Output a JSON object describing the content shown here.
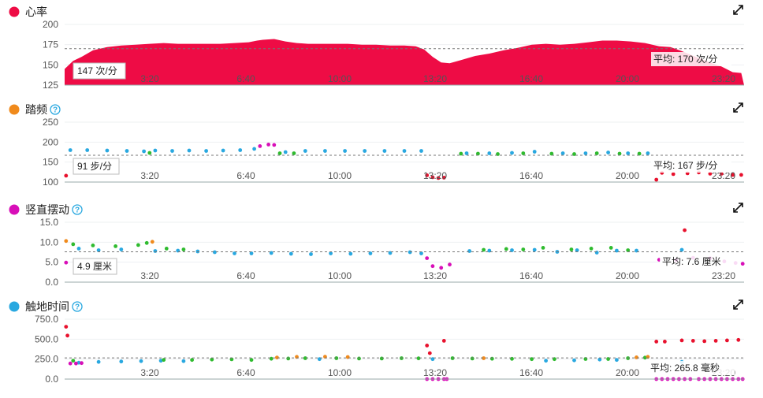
{
  "colors": {
    "heart": "#ee0c45",
    "blue": "#29a8e0",
    "green": "#2fbb2f",
    "orange": "#f08a1c",
    "magenta": "#d80fb8",
    "red": "#e8112d"
  },
  "chart_data": [
    {
      "type": "area",
      "title": "心率",
      "title_dot_color": "#ee0c45",
      "has_help": false,
      "y_ticks": [
        "200",
        "175",
        "150",
        "125"
      ],
      "ylim": [
        125,
        200
      ],
      "x_ticks": [
        "3:20",
        "6:40",
        "10:00",
        "13:20",
        "16:40",
        "20:00",
        "23:20"
      ],
      "tooltip": "147 次/分",
      "average_label": "平均: 170 次/分",
      "average": 170,
      "series": [
        {
          "values": [
            [
              0.0,
              145
            ],
            [
              0.3,
              155
            ],
            [
              0.6,
              160
            ],
            [
              1.0,
              168
            ],
            [
              1.5,
              172
            ],
            [
              2.0,
              174
            ],
            [
              2.5,
              175
            ],
            [
              3.0,
              176
            ],
            [
              3.5,
              177
            ],
            [
              4.0,
              176
            ],
            [
              4.5,
              176
            ],
            [
              5.0,
              176
            ],
            [
              5.5,
              176
            ],
            [
              6.0,
              177
            ],
            [
              6.5,
              178
            ],
            [
              6.8,
              180
            ],
            [
              7.0,
              181
            ],
            [
              7.4,
              182
            ],
            [
              7.8,
              179
            ],
            [
              8.2,
              177
            ],
            [
              8.6,
              176
            ],
            [
              9.0,
              176
            ],
            [
              9.5,
              176
            ],
            [
              10.0,
              176
            ],
            [
              10.5,
              175
            ],
            [
              11.0,
              175
            ],
            [
              11.5,
              174
            ],
            [
              12.0,
              174
            ],
            [
              12.4,
              173
            ],
            [
              12.7,
              169
            ],
            [
              13.0,
              160
            ],
            [
              13.3,
              153
            ],
            [
              13.6,
              152
            ],
            [
              14.0,
              156
            ],
            [
              14.5,
              161
            ],
            [
              15.0,
              164
            ],
            [
              15.5,
              168
            ],
            [
              16.0,
              171
            ],
            [
              16.5,
              175
            ],
            [
              17.0,
              176
            ],
            [
              17.5,
              175
            ],
            [
              18.0,
              176
            ],
            [
              18.5,
              178
            ],
            [
              19.0,
              180
            ],
            [
              19.5,
              180
            ],
            [
              20.0,
              179
            ],
            [
              20.5,
              177
            ],
            [
              21.0,
              173
            ],
            [
              21.4,
              172
            ],
            [
              21.8,
              167
            ],
            [
              22.3,
              160
            ],
            [
              22.8,
              153
            ],
            [
              23.2,
              148
            ],
            [
              23.6,
              141
            ],
            [
              23.9,
              140
            ]
          ]
        }
      ]
    },
    {
      "type": "scatter",
      "title": "踏频",
      "title_dot_color": "#f08a1c",
      "has_help": true,
      "y_ticks": [
        "250",
        "200",
        "150",
        "100"
      ],
      "ylim": [
        100,
        250
      ],
      "x_ticks": [
        "3:20",
        "6:40",
        "10:00",
        "13:20",
        "16:40",
        "20:00",
        "23:20"
      ],
      "tooltip": "91 步/分",
      "average_label": "平均: 167 步/分",
      "average": 167,
      "series": [
        {
          "values": [
            [
              0.2,
              180
            ],
            [
              0.8,
              180
            ],
            [
              1.5,
              179
            ],
            [
              2.2,
              178
            ],
            [
              2.8,
              177
            ],
            [
              3.2,
              179
            ],
            [
              3.8,
              178
            ],
            [
              4.4,
              179
            ],
            [
              5.0,
              178
            ],
            [
              5.6,
              179
            ],
            [
              6.2,
              180
            ],
            [
              6.7,
              183
            ],
            [
              7.8,
              175
            ],
            [
              8.5,
              178
            ],
            [
              9.2,
              178
            ],
            [
              9.9,
              178
            ],
            [
              10.6,
              178
            ],
            [
              11.3,
              178
            ],
            [
              12.0,
              178
            ],
            [
              12.6,
              178
            ],
            [
              14.2,
              172
            ],
            [
              15.0,
              172
            ],
            [
              15.8,
              173
            ],
            [
              16.6,
              176
            ],
            [
              17.6,
              172
            ],
            [
              18.4,
              172
            ],
            [
              19.2,
              174
            ],
            [
              19.9,
              172
            ],
            [
              20.6,
              172
            ]
          ]
        },
        {
          "values": [
            [
              3.0,
              173
            ],
            [
              7.6,
              172
            ],
            [
              8.1,
              172
            ],
            [
              14.0,
              171
            ],
            [
              14.6,
              171
            ],
            [
              15.3,
              170
            ],
            [
              16.2,
              172
            ],
            [
              17.2,
              171
            ],
            [
              18.0,
              170
            ],
            [
              18.8,
              172
            ],
            [
              19.6,
              171
            ],
            [
              20.3,
              171
            ]
          ]
        },
        {
          "values": [
            [
              6.9,
              190
            ],
            [
              7.2,
              194
            ],
            [
              7.4,
              193
            ]
          ]
        },
        {
          "values": [
            [
              0.05,
              116
            ],
            [
              12.8,
              117
            ],
            [
              13.0,
              112
            ],
            [
              13.2,
              110
            ],
            [
              13.4,
              111
            ],
            [
              20.9,
              106
            ],
            [
              21.1,
              123
            ],
            [
              21.5,
              120
            ],
            [
              22.0,
              122
            ],
            [
              22.4,
              124
            ],
            [
              22.8,
              121
            ],
            [
              23.2,
              121
            ],
            [
              23.6,
              118
            ],
            [
              23.9,
              118
            ]
          ]
        }
      ]
    },
    {
      "type": "scatter",
      "title": "竖直摆动",
      "title_dot_color": "#d80fb8",
      "has_help": true,
      "y_ticks": [
        "15.0",
        "10.0",
        "5.0",
        "0.0"
      ],
      "ylim": [
        0,
        15
      ],
      "x_ticks": [
        "3:20",
        "6:40",
        "10:00",
        "13:20",
        "16:40",
        "20:00",
        "23:20"
      ],
      "tooltip": "4.9 厘米",
      "average_label": "平均: 7.6 厘米",
      "average": 7.6,
      "series": [
        {
          "values": [
            [
              0.5,
              8.4
            ],
            [
              1.2,
              8.0
            ],
            [
              2.0,
              8.2
            ],
            [
              3.2,
              7.8
            ],
            [
              4.0,
              7.9
            ],
            [
              4.7,
              7.7
            ],
            [
              5.3,
              7.5
            ],
            [
              6.0,
              7.2
            ],
            [
              6.6,
              7.2
            ],
            [
              7.3,
              7.3
            ],
            [
              8.0,
              7.1
            ],
            [
              8.7,
              7.0
            ],
            [
              9.4,
              7.2
            ],
            [
              10.1,
              7.1
            ],
            [
              10.8,
              7.2
            ],
            [
              11.5,
              7.3
            ],
            [
              12.2,
              7.5
            ],
            [
              12.6,
              7.2
            ],
            [
              14.3,
              7.8
            ],
            [
              15.0,
              7.9
            ],
            [
              15.8,
              8.0
            ],
            [
              16.6,
              8.1
            ],
            [
              17.4,
              7.6
            ],
            [
              18.1,
              8.0
            ],
            [
              18.8,
              7.4
            ],
            [
              19.5,
              7.9
            ],
            [
              20.2,
              7.9
            ],
            [
              21.8,
              8.1
            ]
          ]
        },
        {
          "values": [
            [
              0.3,
              9.5
            ],
            [
              1.0,
              9.2
            ],
            [
              1.8,
              9.0
            ],
            [
              2.6,
              9.3
            ],
            [
              2.9,
              9.8
            ],
            [
              3.6,
              8.4
            ],
            [
              4.2,
              8.2
            ],
            [
              14.8,
              8.1
            ],
            [
              15.6,
              8.3
            ],
            [
              16.2,
              8.2
            ],
            [
              16.9,
              8.6
            ],
            [
              17.9,
              8.2
            ],
            [
              18.6,
              8.4
            ],
            [
              19.3,
              8.6
            ],
            [
              19.9,
              8.0
            ]
          ]
        },
        {
          "values": [
            [
              0.05,
              10.3
            ],
            [
              3.1,
              10.1
            ]
          ]
        },
        {
          "values": [
            [
              0.05,
              4.9
            ],
            [
              12.8,
              6.0
            ],
            [
              13.0,
              4.0
            ],
            [
              13.3,
              3.6
            ],
            [
              13.6,
              4.4
            ],
            [
              21.0,
              5.6
            ],
            [
              21.6,
              5.5
            ],
            [
              22.2,
              6.1
            ],
            [
              22.8,
              6.0
            ],
            [
              23.3,
              5.2
            ],
            [
              23.7,
              4.8
            ],
            [
              23.95,
              4.6
            ]
          ]
        },
        {
          "values": [
            [
              21.9,
              13.0
            ]
          ]
        }
      ]
    },
    {
      "type": "scatter",
      "title": "触地时间",
      "title_dot_color": "#29a8e0",
      "has_help": true,
      "y_ticks": [
        "750.0",
        "500.0",
        "250.0",
        "0.0"
      ],
      "ylim": [
        0,
        750
      ],
      "x_ticks": [
        "3:20",
        "6:40",
        "10:00",
        "13:20",
        "16:40",
        "20:00",
        "23:20"
      ],
      "tooltip": "",
      "average_label": "平均: 265.8 毫秒",
      "average": 265.8,
      "series": [
        {
          "values": [
            [
              0.5,
              205
            ],
            [
              1.2,
              215
            ],
            [
              2.0,
              220
            ],
            [
              2.7,
              225
            ],
            [
              3.4,
              230
            ],
            [
              4.2,
              225
            ],
            [
              9.0,
              250
            ],
            [
              13.0,
              250
            ],
            [
              17.0,
              230
            ],
            [
              18.0,
              235
            ],
            [
              18.9,
              245
            ],
            [
              19.5,
              240
            ],
            [
              21.8,
              215
            ]
          ]
        },
        {
          "values": [
            [
              0.3,
              230
            ],
            [
              3.5,
              240
            ],
            [
              4.5,
              240
            ],
            [
              5.2,
              245
            ],
            [
              5.9,
              248
            ],
            [
              6.6,
              240
            ],
            [
              7.3,
              255
            ],
            [
              7.9,
              258
            ],
            [
              8.5,
              262
            ],
            [
              9.6,
              262
            ],
            [
              10.4,
              258
            ],
            [
              11.2,
              258
            ],
            [
              11.9,
              262
            ],
            [
              12.5,
              260
            ],
            [
              13.7,
              262
            ],
            [
              14.4,
              258
            ],
            [
              15.1,
              255
            ],
            [
              15.8,
              254
            ],
            [
              16.5,
              250
            ],
            [
              17.3,
              250
            ],
            [
              18.4,
              252
            ],
            [
              19.2,
              252
            ],
            [
              19.9,
              262
            ],
            [
              20.5,
              268
            ]
          ]
        },
        {
          "values": [
            [
              7.5,
              270
            ],
            [
              8.2,
              278
            ],
            [
              9.2,
              280
            ],
            [
              10.0,
              276
            ],
            [
              14.8,
              262
            ],
            [
              20.2,
              272
            ],
            [
              20.6,
              278
            ]
          ]
        },
        {
          "values": [
            [
              0.2,
              195
            ],
            [
              0.4,
              195
            ],
            [
              0.6,
              200
            ]
          ]
        },
        {
          "values": [
            [
              0.05,
              655
            ],
            [
              0.1,
              545
            ],
            [
              12.8,
              420
            ],
            [
              12.9,
              325
            ],
            [
              13.4,
              480
            ],
            [
              20.9,
              470
            ],
            [
              21.2,
              470
            ],
            [
              21.8,
              485
            ],
            [
              22.2,
              480
            ],
            [
              22.6,
              475
            ],
            [
              23.0,
              480
            ],
            [
              23.4,
              485
            ],
            [
              23.8,
              490
            ]
          ]
        },
        {
          "values": [
            [
              12.8,
              0
            ],
            [
              13.0,
              0
            ],
            [
              13.2,
              0
            ],
            [
              13.4,
              0
            ],
            [
              13.5,
              0
            ],
            [
              20.9,
              0
            ],
            [
              21.1,
              0
            ],
            [
              21.3,
              0
            ],
            [
              21.5,
              0
            ],
            [
              21.7,
              0
            ],
            [
              21.9,
              0
            ],
            [
              22.1,
              0
            ],
            [
              22.4,
              0
            ],
            [
              22.6,
              0
            ],
            [
              22.8,
              0
            ],
            [
              23.0,
              0
            ],
            [
              23.2,
              0
            ],
            [
              23.4,
              0
            ],
            [
              23.6,
              0
            ],
            [
              23.8,
              0
            ],
            [
              23.95,
              0
            ]
          ]
        }
      ]
    }
  ]
}
